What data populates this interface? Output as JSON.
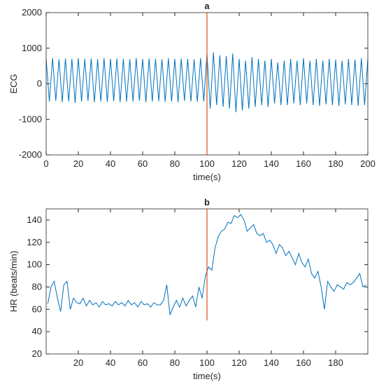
{
  "chart_data": [
    {
      "type": "line",
      "title": "a",
      "xlabel": "time(s)",
      "ylabel": "ECG",
      "xlim": [
        0,
        200
      ],
      "xticks": [
        0,
        20,
        40,
        60,
        80,
        100,
        120,
        140,
        160,
        180,
        200
      ],
      "ylim": [
        -2000,
        2000
      ],
      "yticks": [
        -2000,
        -1000,
        0,
        1000,
        2000
      ],
      "vline": {
        "x": 100,
        "y": [
          -2000,
          2000
        ],
        "color": "#d95319"
      },
      "series": [
        {
          "color": "#0072bd",
          "x": [
            0,
            2,
            4,
            6,
            8,
            10,
            12,
            14,
            16,
            18,
            20,
            22,
            24,
            26,
            28,
            30,
            32,
            34,
            36,
            38,
            40,
            42,
            44,
            46,
            48,
            50,
            52,
            54,
            56,
            58,
            60,
            62,
            64,
            66,
            68,
            70,
            72,
            74,
            76,
            78,
            80,
            82,
            84,
            86,
            88,
            90,
            92,
            94,
            96,
            98,
            100,
            102,
            104,
            106,
            108,
            110,
            112,
            114,
            116,
            118,
            120,
            122,
            124,
            126,
            128,
            130,
            132,
            134,
            136,
            138,
            140,
            142,
            144,
            146,
            148,
            150,
            152,
            154,
            156,
            158,
            160,
            162,
            164,
            166,
            168,
            170,
            172,
            174,
            176,
            178,
            180,
            182,
            184,
            186,
            188,
            190,
            192,
            194,
            196,
            198,
            200
          ],
          "values": [
            700,
            -500,
            720,
            -480,
            690,
            -520,
            710,
            -500,
            700,
            -540,
            720,
            -500,
            700,
            -480,
            710,
            -520,
            690,
            -500,
            720,
            -510,
            700,
            -490,
            710,
            -520,
            700,
            -500,
            690,
            -500,
            720,
            -480,
            700,
            -520,
            710,
            -500,
            700,
            -490,
            690,
            -510,
            720,
            -500,
            700,
            -520,
            710,
            -480,
            700,
            -500,
            690,
            -510,
            720,
            -500,
            850,
            -700,
            880,
            -600,
            800,
            -650,
            780,
            -700,
            850,
            -800,
            700,
            -750,
            650,
            -700,
            750,
            -650,
            700,
            -600,
            650,
            -650,
            700,
            -550,
            600,
            -600,
            650,
            -600,
            700,
            -550,
            650,
            -600,
            720,
            -550,
            650,
            -600,
            700,
            -620,
            650,
            -580,
            700,
            -600,
            680,
            -620,
            650,
            -580,
            700,
            -600,
            680,
            -620,
            720,
            -600,
            700
          ]
        }
      ]
    },
    {
      "type": "line",
      "title": "b",
      "xlabel": "time(s)",
      "ylabel": "HR (beats/min)",
      "xlim": [
        0,
        200
      ],
      "xticks": [
        20,
        40,
        60,
        80,
        100,
        120,
        140,
        160,
        180
      ],
      "ylim": [
        20,
        150
      ],
      "yticks": [
        20,
        40,
        60,
        80,
        100,
        120,
        140
      ],
      "vline": {
        "x": 100,
        "y": [
          50,
          150
        ],
        "color": "#d95319"
      },
      "series": [
        {
          "color": "#0072bd",
          "x": [
            1,
            3,
            5,
            7,
            9,
            11,
            13,
            15,
            17,
            19,
            21,
            23,
            25,
            27,
            29,
            31,
            33,
            35,
            37,
            39,
            41,
            43,
            45,
            47,
            49,
            51,
            53,
            55,
            57,
            59,
            61,
            63,
            65,
            67,
            69,
            71,
            73,
            75,
            77,
            79,
            81,
            83,
            85,
            87,
            89,
            91,
            93,
            95,
            97,
            99,
            101,
            103,
            105,
            107,
            109,
            111,
            113,
            115,
            117,
            119,
            121,
            123,
            125,
            127,
            129,
            131,
            133,
            135,
            137,
            139,
            141,
            143,
            145,
            147,
            149,
            151,
            153,
            155,
            157,
            159,
            161,
            163,
            165,
            167,
            169,
            171,
            173,
            175,
            177,
            179,
            181,
            183,
            185,
            187,
            189,
            191,
            193,
            195,
            197,
            199
          ],
          "values": [
            65,
            80,
            85,
            70,
            58,
            82,
            85,
            60,
            70,
            66,
            65,
            70,
            63,
            68,
            64,
            66,
            62,
            67,
            64,
            65,
            63,
            67,
            64,
            66,
            63,
            68,
            64,
            66,
            62,
            67,
            64,
            65,
            62,
            66,
            64,
            64,
            68,
            82,
            55,
            62,
            68,
            62,
            70,
            63,
            68,
            72,
            62,
            80,
            70,
            90,
            98,
            95,
            115,
            125,
            130,
            132,
            138,
            137,
            144,
            142,
            145,
            140,
            130,
            133,
            136,
            128,
            126,
            128,
            120,
            122,
            118,
            110,
            118,
            115,
            108,
            112,
            106,
            100,
            110,
            102,
            98,
            105,
            92,
            88,
            94,
            80,
            60,
            85,
            80,
            76,
            82,
            80,
            78,
            84,
            82,
            84,
            88,
            92,
            80,
            82
          ]
        }
      ]
    }
  ]
}
